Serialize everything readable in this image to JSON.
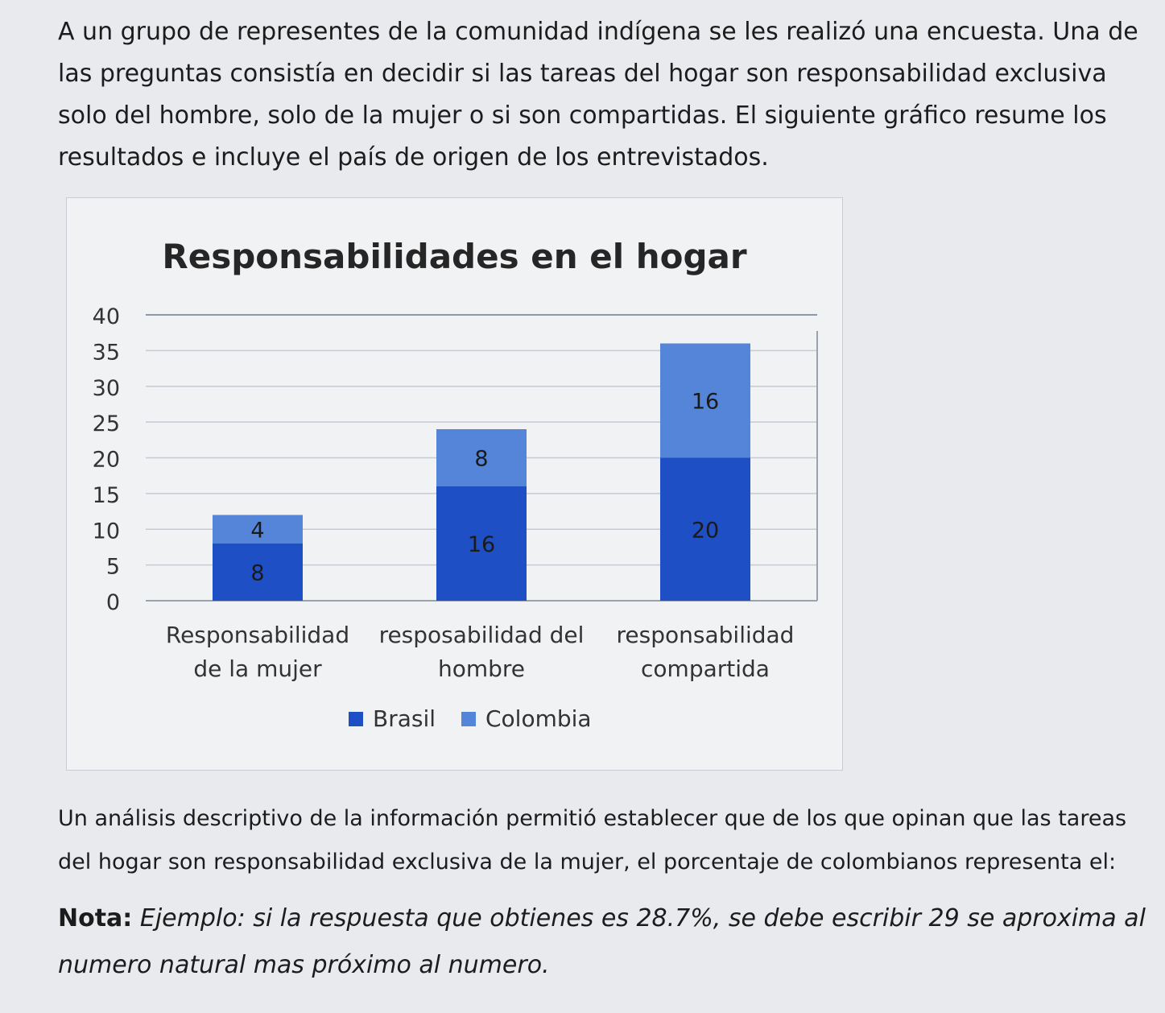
{
  "intro_text": "A un grupo de representes de la comunidad indígena se les realizó una encuesta. Una de las preguntas consistía en decidir si las tareas del hogar son responsabilidad exclusiva solo del hombre, solo de la mujer o si son compartidas. El siguiente gráfico resume los resultados e incluye el país de origen de los entrevistados.",
  "question_text": "Un análisis descriptivo de la información permitió establecer que de los que opinan que las tareas del hogar son responsabilidad exclusiva de la mujer, el porcentaje de colombianos representa el:",
  "note_label": "Nota:",
  "note_text": "Ejemplo: si la respuesta que obtienes es 28.7%, se debe escribir 29 se aproxima al numero natural mas próximo al numero.",
  "chart_data": {
    "type": "bar",
    "stacked": true,
    "title": "Responsabilidades en el hogar",
    "categories": [
      [
        "Responsabilidad",
        "de la mujer"
      ],
      [
        "resposabilidad del",
        "hombre"
      ],
      [
        "responsabilidad",
        "compartida"
      ]
    ],
    "series": [
      {
        "name": "Brasil",
        "values": [
          8,
          16,
          20
        ],
        "color": "#1f4fc4"
      },
      {
        "name": "Colombia",
        "values": [
          4,
          8,
          16
        ],
        "color": "#5585d8"
      }
    ],
    "ylim": [
      0,
      40
    ],
    "yticks": [
      0,
      5,
      10,
      15,
      20,
      25,
      30,
      35,
      40
    ],
    "grid": true,
    "legend": "bottom",
    "data_labels": true
  }
}
